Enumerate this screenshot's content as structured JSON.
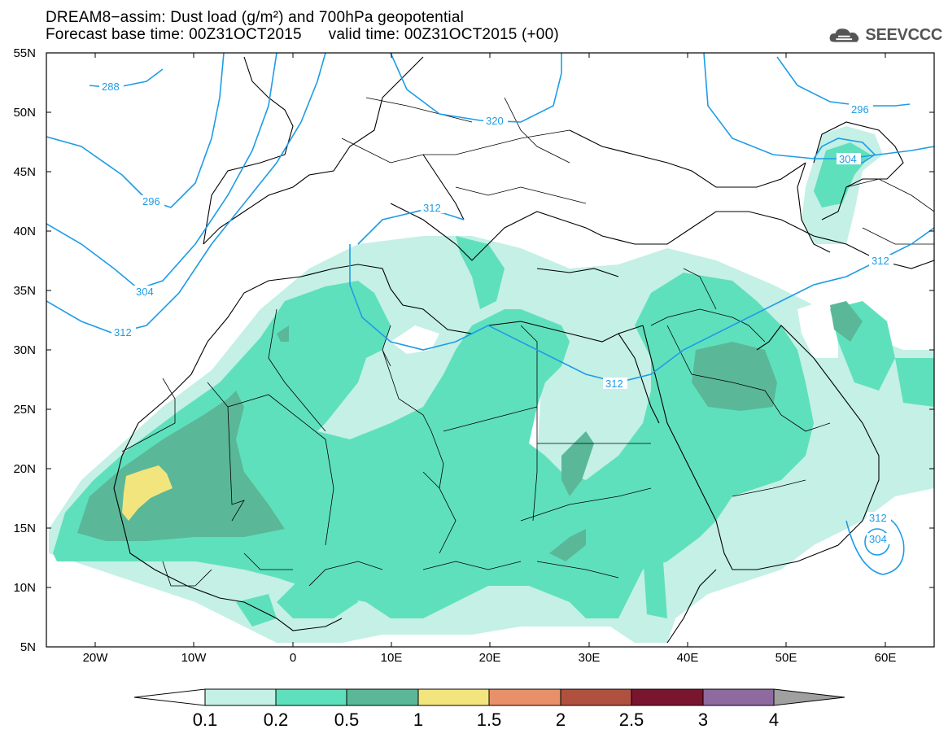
{
  "title_line1": "DREAM8−assim: Dust load (g/m²) and 700hPa geopotential",
  "title_line2": "Forecast base time: 00Z31OCT2015      valid time: 00Z31OCT2015 (+00)",
  "logo_text": "SEEVCCC",
  "map": {
    "lon_range": [
      -25,
      65
    ],
    "lat_range": [
      5,
      55
    ],
    "lat_ticks": [
      "55N",
      "50N",
      "45N",
      "40N",
      "35N",
      "30N",
      "25N",
      "20N",
      "15N",
      "10N",
      "5N"
    ],
    "lon_ticks": [
      "20W",
      "10W",
      "0",
      "10E",
      "20E",
      "30E",
      "40E",
      "50E",
      "60E"
    ],
    "contour_labels": [
      "288",
      "296",
      "304",
      "312",
      "320",
      "312",
      "312",
      "296",
      "304",
      "312",
      "304"
    ]
  },
  "colorbar": {
    "labels": [
      "0.1",
      "0.2",
      "0.5",
      "1",
      "1.5",
      "2",
      "2.5",
      "3",
      "4"
    ],
    "colors": [
      "#c4f0e6",
      "#5fe0bc",
      "#5ab898",
      "#f3e57e",
      "#e8906a",
      "#b0513f",
      "#7a1530",
      "#8e6aa0",
      "#a0a0a0"
    ]
  },
  "colors": {
    "dust_low": "#c4f0e6",
    "dust_mid": "#5fe0bc",
    "dust_high": "#5ab898",
    "dust_peak": "#f3e57e",
    "contour": "#1e9ce6"
  }
}
